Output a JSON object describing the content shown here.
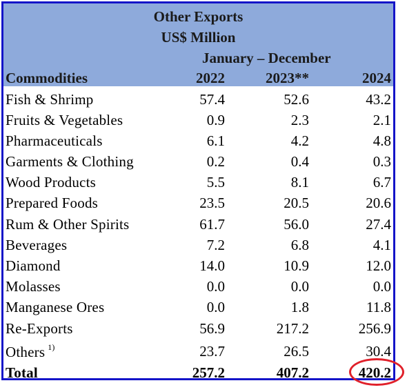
{
  "header": {
    "title": "Other Exports",
    "subtitle": "US$ Million",
    "period": "January – December",
    "col_commodities": "Commodities",
    "col_2022": "2022",
    "col_2023": "2023**",
    "col_2024": "2024"
  },
  "rows": [
    {
      "name": "Fish & Shrimp",
      "v2022": "57.4",
      "v2023": "52.6",
      "v2024": "43.2"
    },
    {
      "name": "Fruits & Vegetables",
      "v2022": "0.9",
      "v2023": "2.3",
      "v2024": "2.1"
    },
    {
      "name": "Pharmaceuticals",
      "v2022": "6.1",
      "v2023": "4.2",
      "v2024": "4.8"
    },
    {
      "name": "Garments & Clothing",
      "v2022": "0.2",
      "v2023": "0.4",
      "v2024": "0.3"
    },
    {
      "name": "Wood Products",
      "v2022": "5.5",
      "v2023": "8.1",
      "v2024": "6.7"
    },
    {
      "name": "Prepared Foods",
      "v2022": "23.5",
      "v2023": "20.5",
      "v2024": "20.6"
    },
    {
      "name": "Rum & Other Spirits",
      "v2022": "61.7",
      "v2023": "56.0",
      "v2024": "27.4"
    },
    {
      "name": "Beverages",
      "v2022": "7.2",
      "v2023": "6.8",
      "v2024": "4.1"
    },
    {
      "name": "Diamond",
      "v2022": "14.0",
      "v2023": "10.9",
      "v2024": "12.0"
    },
    {
      "name": "Molasses",
      "v2022": "0.0",
      "v2023": "0.0",
      "v2024": "0.0"
    },
    {
      "name": "Manganese Ores",
      "v2022": "0.0",
      "v2023": "1.8",
      "v2024": "11.8"
    },
    {
      "name": "Re-Exports",
      "v2022": "56.9",
      "v2023": "217.2",
      "v2024": "256.9"
    },
    {
      "name": "Others",
      "note": "1)",
      "v2022": "23.7",
      "v2023": "26.5",
      "v2024": "30.4"
    }
  ],
  "total": {
    "name": "Total",
    "v2022": "257.2",
    "v2023": "407.2",
    "v2024": "420.2"
  },
  "colors": {
    "border": "#1414c8",
    "header_bg": "#8eaadb",
    "highlight": "#e0202a"
  }
}
